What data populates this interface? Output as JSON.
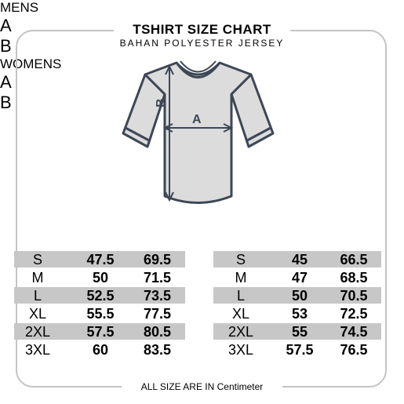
{
  "title": "TSHIRT SIZE CHART",
  "subtitle": "BAHAN  POLYESTER  JERSEY",
  "footer": "ALL SIZE ARE IN Centimeter",
  "diagram": {
    "label_a": "A",
    "label_b": "B"
  },
  "mens": {
    "header": "MENS",
    "col_a": "A",
    "col_b": "B",
    "rows": [
      {
        "size": "S",
        "a": "47.5",
        "b": "69.5"
      },
      {
        "size": "M",
        "a": "50",
        "b": "71.5"
      },
      {
        "size": "L",
        "a": "52.5",
        "b": "73.5"
      },
      {
        "size": "XL",
        "a": "55.5",
        "b": "77.5"
      },
      {
        "size": "2XL",
        "a": "57.5",
        "b": "80.5"
      },
      {
        "size": "3XL",
        "a": "60",
        "b": "83.5"
      }
    ]
  },
  "womens": {
    "header": "WOMENS",
    "col_a": "A",
    "col_b": "B",
    "rows": [
      {
        "size": "S",
        "a": "45",
        "b": "66.5"
      },
      {
        "size": "M",
        "a": "47",
        "b": "68.5"
      },
      {
        "size": "L",
        "a": "50",
        "b": "70.5"
      },
      {
        "size": "XL",
        "a": "53",
        "b": "72.5"
      },
      {
        "size": "2XL",
        "a": "55",
        "b": "74.5"
      },
      {
        "size": "3XL",
        "a": "57.5",
        "b": "76.5"
      }
    ]
  },
  "colors": {
    "shirt_fill": "#dcdcdc",
    "outline": "#3d4756",
    "row_shade": "#c7c7c7",
    "frame": "#c4c4c4"
  }
}
